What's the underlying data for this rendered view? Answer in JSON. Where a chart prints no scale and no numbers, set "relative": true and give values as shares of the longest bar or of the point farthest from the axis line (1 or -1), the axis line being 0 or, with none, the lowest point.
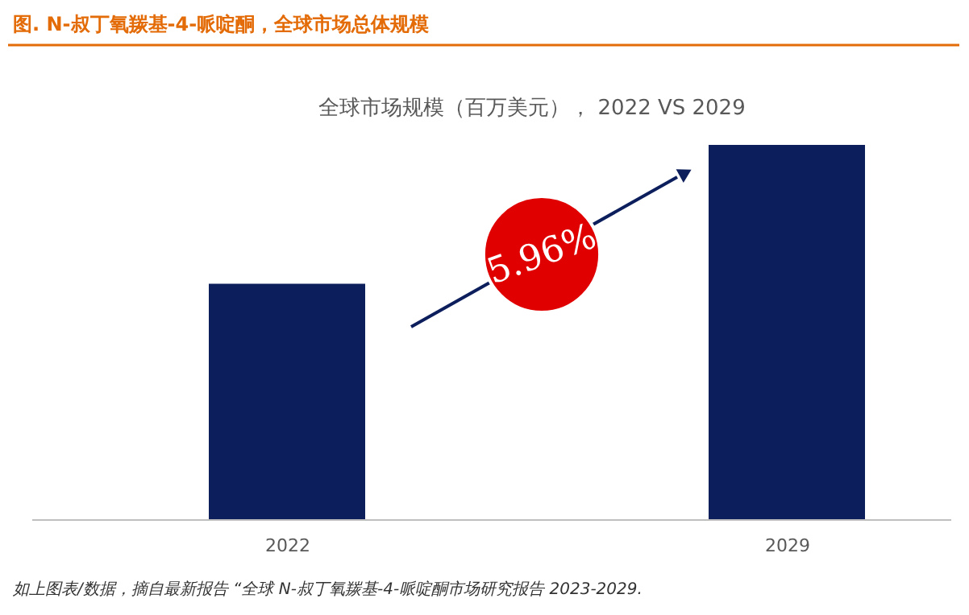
{
  "chart_data": {
    "type": "bar",
    "title": "图.    N-叔丁氧羰基-4-哌啶酮，全球市场总体规模",
    "subtitle": "全球市场规模（百万美元）， 2022 VS 2029",
    "categories": [
      "2022",
      "2029"
    ],
    "relative": true,
    "values": [
      0.63,
      1
    ],
    "color": "#0c1f5c",
    "annotations": [
      "5.96%",
      "如上图表/数据，摘自最新报告 “全球 N-叔丁氧羰基-4-哌啶酮市场研究报告 2023-2029."
    ],
    "grid": false,
    "legend": false
  }
}
